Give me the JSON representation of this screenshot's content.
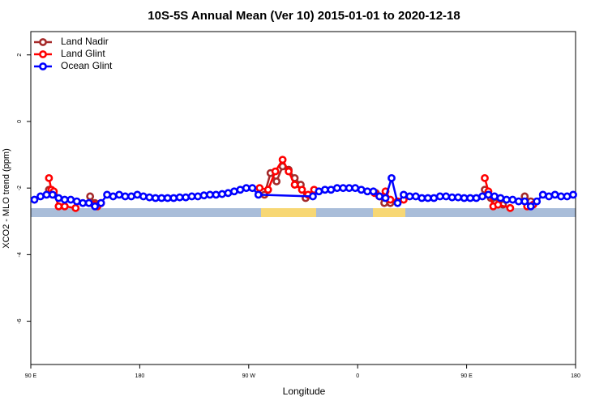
{
  "chart_data": {
    "type": "line",
    "title": "10S-5S Annual Mean (Ver 10)   2015-01-01 to 2020-12-18",
    "x_label": "Longitude",
    "y_label": "XCO2 - MLO trend (ppm)",
    "xlim": [
      90,
      540
    ],
    "ylim": [
      -7.3,
      2.7
    ],
    "xticks": [
      {
        "value": 90,
        "label": "90 E"
      },
      180,
      {
        "value": 270,
        "label": "90 W"
      },
      {
        "value": 360,
        "label": "0"
      },
      {
        "value": 450,
        "label": "90 E"
      },
      {
        "value": 540,
        "label": "180"
      }
    ],
    "yticks": [
      -6,
      -4,
      -2,
      0,
      2
    ],
    "legend": "top-left",
    "series": [
      {
        "name": "Land Nadir",
        "color": "#a52a2a",
        "x": [
          105,
          109,
          null,
          139,
          143,
          null,
          283,
          288,
          293,
          298,
          303,
          308,
          313,
          317,
          null,
          375,
          382,
          387,
          null,
          465,
          470,
          474,
          480,
          null,
          498,
          503
        ],
        "values": [
          -2.05,
          -2.2,
          null,
          -2.25,
          -2.45,
          null,
          -2.2,
          -1.55,
          -1.8,
          -1.35,
          -1.45,
          -1.7,
          -1.9,
          -2.3,
          null,
          -2.15,
          -2.45,
          -2.45,
          null,
          -2.05,
          -2.3,
          -2.45,
          -2.5,
          null,
          -2.25,
          -2.4
        ]
      },
      {
        "name": "Land Glint",
        "color": "#ff0000",
        "x": [
          105,
          107,
          109,
          113,
          118,
          127,
          null,
          142,
          145,
          148,
          null,
          279,
          286,
          292,
          298,
          303,
          308,
          314,
          319,
          324,
          null,
          374,
          378,
          383,
          387,
          393,
          398,
          null,
          465,
          468,
          472,
          476,
          486,
          null,
          500,
          505
        ],
        "values": [
          -1.7,
          -2.05,
          -2.1,
          -2.55,
          -2.55,
          -2.6,
          null,
          -2.5,
          -2.55,
          -2.45,
          null,
          -2.0,
          -2.05,
          -1.5,
          -1.15,
          -1.5,
          -1.9,
          -2.05,
          -2.2,
          -2.05,
          null,
          -2.15,
          -2.25,
          -2.1,
          -2.35,
          -2.4,
          -2.35,
          null,
          -1.7,
          -2.1,
          -2.55,
          -2.5,
          -2.6,
          null,
          -2.55,
          -2.5
        ]
      },
      {
        "name": "Ocean Glint",
        "color": "#0000ff",
        "x": [
          93,
          98,
          103,
          108,
          113,
          118,
          123,
          128,
          133,
          138,
          143,
          148,
          153,
          158,
          163,
          168,
          173,
          178,
          183,
          188,
          193,
          198,
          203,
          208,
          213,
          218,
          223,
          228,
          233,
          238,
          243,
          248,
          253,
          258,
          263,
          268,
          273,
          278,
          323,
          328,
          333,
          338,
          343,
          348,
          353,
          358,
          363,
          368,
          373,
          378,
          383,
          388,
          393,
          398,
          403,
          408,
          413,
          418,
          423,
          428,
          433,
          438,
          443,
          448,
          453,
          458,
          463,
          468,
          473,
          478,
          483,
          488,
          493,
          498,
          503,
          508,
          513,
          518,
          523,
          528,
          533,
          538
        ],
        "values": [
          -2.35,
          -2.25,
          -2.2,
          -2.2,
          -2.3,
          -2.35,
          -2.35,
          -2.4,
          -2.45,
          -2.45,
          -2.55,
          -2.45,
          -2.2,
          -2.25,
          -2.2,
          -2.25,
          -2.25,
          -2.2,
          -2.25,
          -2.28,
          -2.3,
          -2.3,
          -2.3,
          -2.3,
          -2.28,
          -2.28,
          -2.25,
          -2.25,
          -2.22,
          -2.2,
          -2.2,
          -2.18,
          -2.15,
          -2.1,
          -2.05,
          -2.0,
          -2.0,
          -2.2,
          -2.25,
          -2.1,
          -2.05,
          -2.05,
          -2.0,
          -2.0,
          -2.0,
          -2.0,
          -2.05,
          -2.1,
          -2.1,
          -2.25,
          -2.3,
          -1.7,
          -2.45,
          -2.2,
          -2.25,
          -2.25,
          -2.3,
          -2.3,
          -2.3,
          -2.25,
          -2.25,
          -2.28,
          -2.28,
          -2.3,
          -2.3,
          -2.3,
          -2.25,
          -2.2,
          -2.25,
          -2.3,
          -2.35,
          -2.35,
          -2.4,
          -2.4,
          -2.55,
          -2.4,
          -2.2,
          -2.25,
          -2.2,
          -2.25,
          -2.25,
          -2.2
        ]
      }
    ]
  }
}
